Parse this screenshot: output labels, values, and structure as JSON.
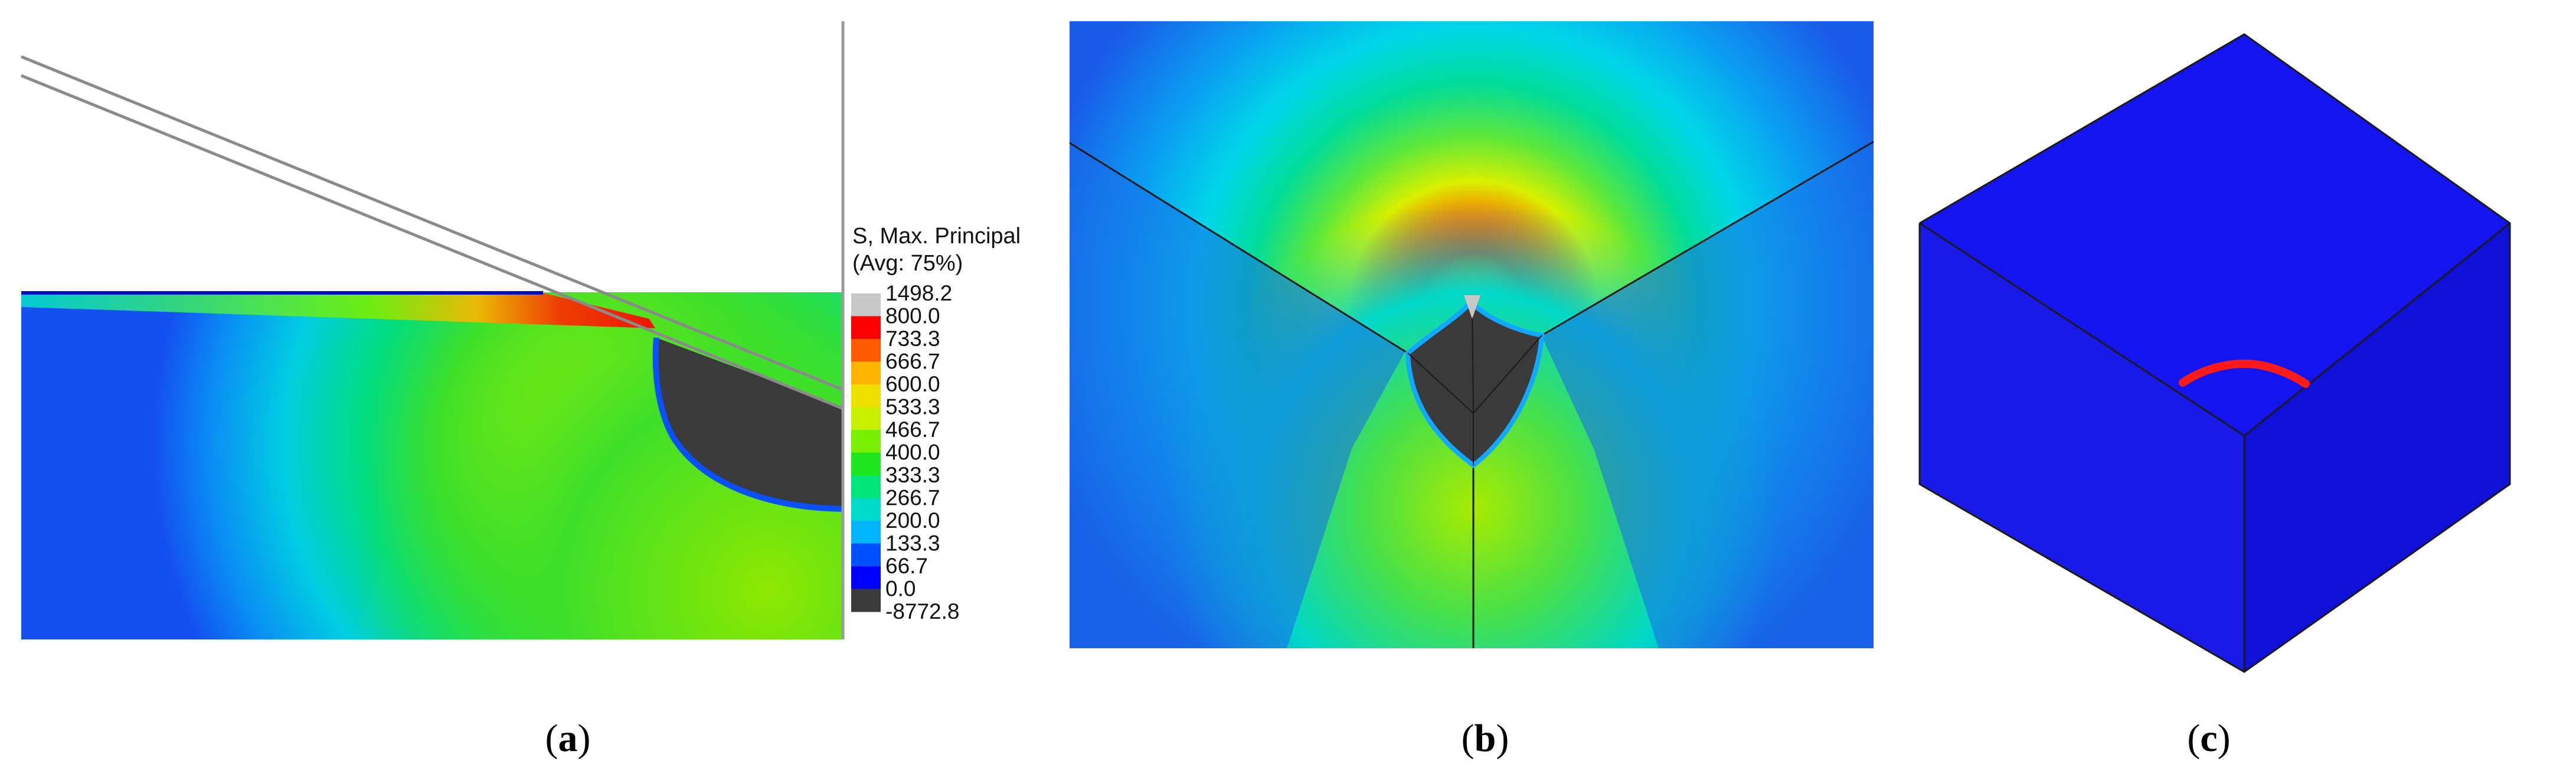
{
  "legend": {
    "title_line1": "S, Max. Principal",
    "title_line2": "(Avg: 75%)",
    "ticks": [
      "1498.2",
      "800.0",
      "733.3",
      "666.7",
      "600.0",
      "533.3",
      "466.7",
      "400.0",
      "333.3",
      "266.7",
      "200.0",
      "133.3",
      "66.7",
      "0.0",
      "-8772.8"
    ],
    "band_colors": [
      "#c8c8c8",
      "#ff0000",
      "#ff5a00",
      "#ffb400",
      "#f0e000",
      "#c8f000",
      "#78f000",
      "#1ee61e",
      "#00e678",
      "#00dcc8",
      "#00b4ff",
      "#0050ff",
      "#0000ff",
      "#3a3a3a"
    ]
  },
  "panels": [
    {
      "letter": "a",
      "open": "(",
      "close": ")"
    },
    {
      "letter": "b",
      "open": "(",
      "close": ")"
    },
    {
      "letter": "c",
      "open": "(",
      "close": ")"
    }
  ],
  "colors": {
    "contact_zone": "#3a3a3a",
    "cube_blue": "#1a1aee",
    "crack": "#ff1a1a"
  }
}
